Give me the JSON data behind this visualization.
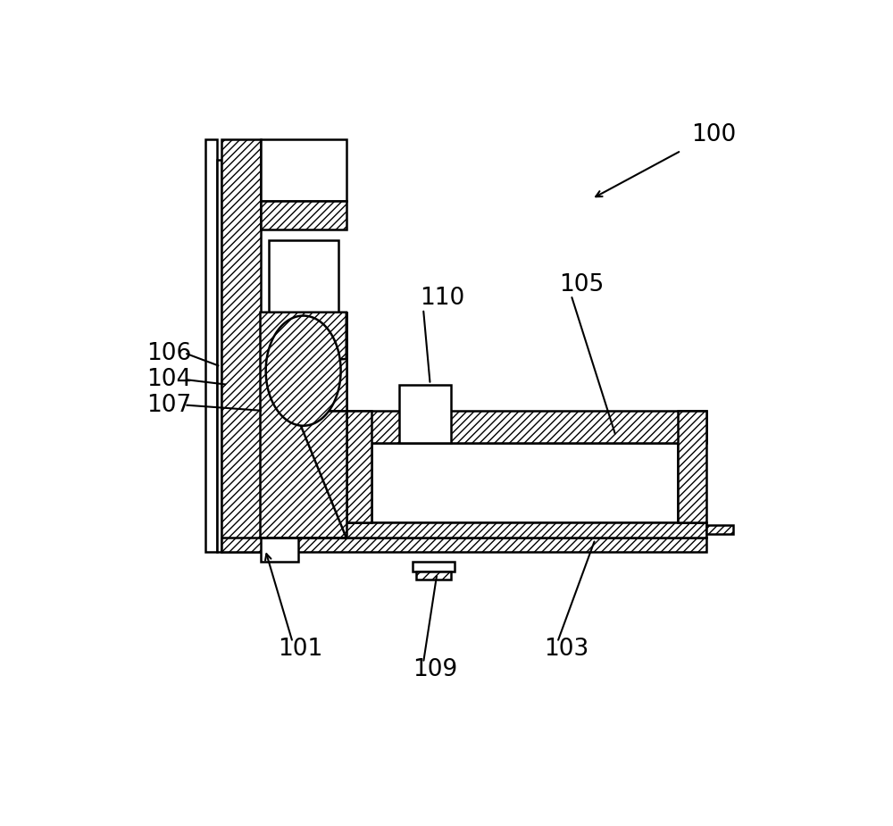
{
  "bg_color": "#ffffff",
  "lw": 1.8,
  "lw_thin": 1.2,
  "fig_width": 10.0,
  "fig_height": 9.25,
  "hatch_density": "////",
  "label_fs": 19
}
